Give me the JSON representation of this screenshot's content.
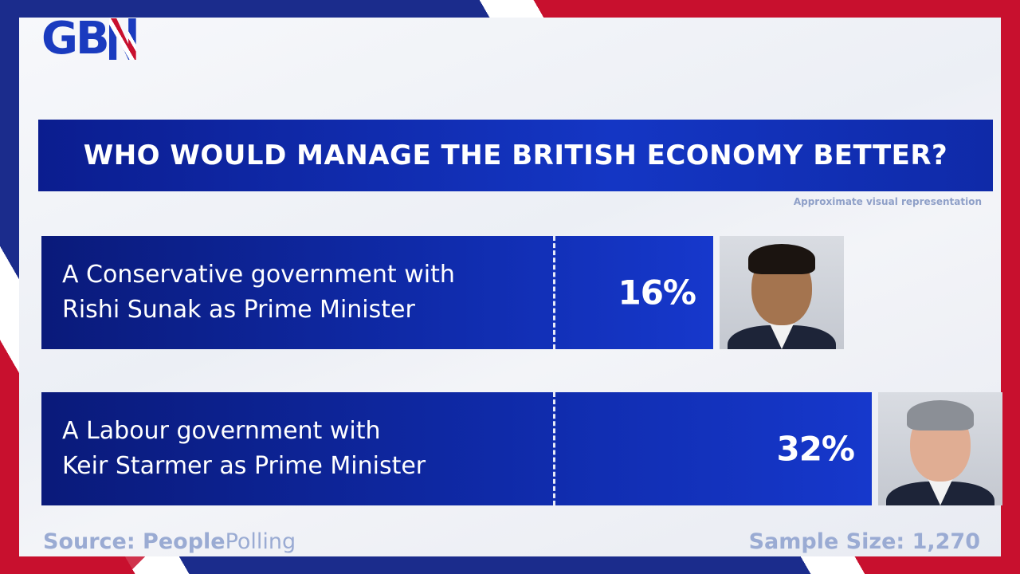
{
  "logo": {
    "text": "GB",
    "suffix": "N"
  },
  "title": "WHO WOULD MANAGE THE BRITISH ECONOMY BETTER?",
  "note": "Approximate visual representation",
  "chart_data": {
    "type": "bar",
    "orientation": "horizontal",
    "title": "WHO WOULD MANAGE THE BRITISH ECONOMY BETTER?",
    "categories": [
      "A Conservative government with Rishi Sunak as Prime Minister",
      "A Labour government with Keir Starmer as Prime Minister"
    ],
    "values": [
      16,
      32
    ],
    "unit": "%",
    "value_labels": [
      "16%",
      "32%"
    ],
    "bars": [
      {
        "line1": "A Conservative government with",
        "line2": "Rishi Sunak as Prime Minister",
        "value": 16,
        "value_label": "16%",
        "portrait": "rishi-sunak-portrait"
      },
      {
        "line1": "A Labour government with",
        "line2": "Keir Starmer as Prime Minister",
        "value": 32,
        "value_label": "32%",
        "portrait": "keir-starmer-portrait"
      }
    ],
    "colors": {
      "bar": "#0f2aa8",
      "title_bar": "#1436c4",
      "text": "#ffffff"
    }
  },
  "footer": {
    "source_label": "Source: ",
    "source_bold": "People",
    "source_light": "Polling",
    "sample_size": "Sample Size: 1,270"
  }
}
